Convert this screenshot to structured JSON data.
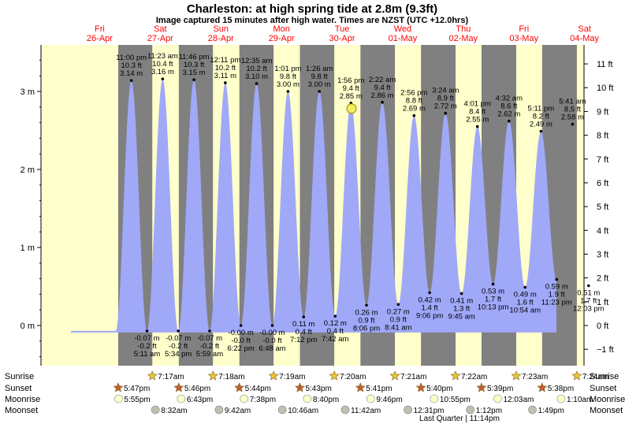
{
  "header": {
    "title": "Charleston: at high  spring tide at 2.8m (9.3ft)",
    "subtitle": "Image captured 15 minutes after high water. Times are NZST (UTC +12.0hrs)"
  },
  "colors": {
    "day": "#ffffcc",
    "night": "#808080",
    "water": "#a0a8f8",
    "day_label": "#ff0000",
    "sun_marker": "#f0f060",
    "sunrise_star": "#e8c830",
    "sunset_star": "#c06030",
    "moonrise": "#ffffc8",
    "moonset": "#c0c0b0"
  },
  "chart_data": {
    "type": "area",
    "days": [
      {
        "name": "Fri",
        "date": "26-Apr"
      },
      {
        "name": "Sat",
        "date": "27-Apr"
      },
      {
        "name": "Sun",
        "date": "28-Apr"
      },
      {
        "name": "Mon",
        "date": "29-Apr"
      },
      {
        "name": "Tue",
        "date": "30-Apr"
      },
      {
        "name": "Wed",
        "date": "01-May"
      },
      {
        "name": "Thu",
        "date": "02-May"
      },
      {
        "name": "Fri",
        "date": "03-May"
      },
      {
        "name": "Sat",
        "date": "04-May"
      }
    ],
    "y_left_ticks": [
      "0 m",
      "1 m",
      "2 m",
      "3 m"
    ],
    "y_right_ticks": [
      "−1 ft",
      "0 ft",
      "1 ft",
      "2 ft",
      "3 ft",
      "4 ft",
      "5 ft",
      "6 ft",
      "7 ft",
      "8 ft",
      "9 ft",
      "10 ft",
      "11 ft"
    ],
    "ylim_m": [
      -0.5,
      3.6
    ],
    "tides": [
      {
        "type": "high",
        "time": "11:00 pm",
        "m": 3.14,
        "ft": "10.3 ft",
        "m_label": "3.14 m"
      },
      {
        "type": "low",
        "time": "5:11 am",
        "m": -0.07,
        "ft": "-0.2 ft",
        "m_label": "-0.07 m"
      },
      {
        "type": "high",
        "time": "11:23 am",
        "m": 3.16,
        "ft": "10.4 ft",
        "m_label": "3.16 m"
      },
      {
        "type": "low",
        "time": "5:34 pm",
        "m": -0.07,
        "ft": "-0.2 ft",
        "m_label": "-0.07 m"
      },
      {
        "type": "high",
        "time": "11:46 pm",
        "m": 3.15,
        "ft": "10.3 ft",
        "m_label": "3.15 m"
      },
      {
        "type": "low",
        "time": "5:59 am",
        "m": -0.07,
        "ft": "-0.2 ft",
        "m_label": "-0.07 m"
      },
      {
        "type": "high",
        "time": "12:11 pm",
        "m": 3.11,
        "ft": "10.2 ft",
        "m_label": "3.11 m"
      },
      {
        "type": "low",
        "time": "6:22 pm",
        "m": 0.0,
        "ft": "-0.0 ft",
        "m_label": "-0.00 m"
      },
      {
        "type": "high",
        "time": "12:35 am",
        "m": 3.1,
        "ft": "10.2 ft",
        "m_label": "3.10 m"
      },
      {
        "type": "low",
        "time": "6:48 am",
        "m": 0.0,
        "ft": "-0.0 ft",
        "m_label": "-0.00 m"
      },
      {
        "type": "high",
        "time": "1:01 pm",
        "m": 3.0,
        "ft": "9.8 ft",
        "m_label": "3.00 m"
      },
      {
        "type": "low",
        "time": "7:12 pm",
        "m": 0.11,
        "ft": "0.4 ft",
        "m_label": "0.11 m"
      },
      {
        "type": "high",
        "time": "1:26 am",
        "m": 3.0,
        "ft": "9.8 ft",
        "m_label": "3.00 m"
      },
      {
        "type": "low",
        "time": "7:42 am",
        "m": 0.12,
        "ft": "0.4 ft",
        "m_label": "0.12 m"
      },
      {
        "type": "high",
        "time": "1:56 pm",
        "m": 2.85,
        "ft": "9.4 ft",
        "m_label": "2.85 m"
      },
      {
        "type": "low",
        "time": "8:06 pm",
        "m": 0.26,
        "ft": "0.9 ft",
        "m_label": "0.26 m"
      },
      {
        "type": "high",
        "time": "2:22 am",
        "m": 2.86,
        "ft": "9.4 ft",
        "m_label": "2.86 m"
      },
      {
        "type": "low",
        "time": "8:41 am",
        "m": 0.27,
        "ft": "0.9 ft",
        "m_label": "0.27 m"
      },
      {
        "type": "high",
        "time": "2:56 pm",
        "m": 2.69,
        "ft": "8.8 ft",
        "m_label": "2.69 m"
      },
      {
        "type": "low",
        "time": "9:06 pm",
        "m": 0.42,
        "ft": "1.4 ft",
        "m_label": "0.42 m"
      },
      {
        "type": "high",
        "time": "3:24 am",
        "m": 2.72,
        "ft": "8.9 ft",
        "m_label": "2.72 m"
      },
      {
        "type": "low",
        "time": "9:45 am",
        "m": 0.41,
        "ft": "1.3 ft",
        "m_label": "0.41 m"
      },
      {
        "type": "high",
        "time": "4:01 pm",
        "m": 2.55,
        "ft": "8.4 ft",
        "m_label": "2.55 m"
      },
      {
        "type": "low",
        "time": "10:13 pm",
        "m": 0.53,
        "ft": "1.7 ft",
        "m_label": "0.53 m"
      },
      {
        "type": "high",
        "time": "4:32 am",
        "m": 2.62,
        "ft": "8.6 ft",
        "m_label": "2.62 m"
      },
      {
        "type": "low",
        "time": "10:54 am",
        "m": 0.49,
        "ft": "1.6 ft",
        "m_label": "0.49 m"
      },
      {
        "type": "high",
        "time": "5:11 pm",
        "m": 2.49,
        "ft": "8.2 ft",
        "m_label": "2.49 m"
      },
      {
        "type": "low",
        "time": "11:23 pm",
        "m": 0.59,
        "ft": "1.9 ft",
        "m_label": "0.59 m"
      },
      {
        "type": "high",
        "time": "5:41 am",
        "m": 2.58,
        "ft": "8.5 ft",
        "m_label": "2.58 m"
      },
      {
        "type": "low",
        "time": "12:03 pm",
        "m": 0.51,
        "ft": "1.7 ft",
        "m_label": "0.51 m"
      }
    ]
  },
  "rows": {
    "sunrise_label": "Sunrise",
    "sunset_label": "Sunset",
    "moonrise_label": "Moonrise",
    "moonset_label": "Moonset",
    "sunrise": [
      "7:17am",
      "7:18am",
      "7:19am",
      "7:20am",
      "7:21am",
      "7:22am",
      "7:23am",
      "7:24am"
    ],
    "sunset": [
      "5:47pm",
      "5:46pm",
      "5:44pm",
      "5:43pm",
      "5:41pm",
      "5:40pm",
      "5:39pm",
      "5:38pm"
    ],
    "moonrise": [
      "5:55pm",
      "6:43pm",
      "7:38pm",
      "8:40pm",
      "9:46pm",
      "10:55pm",
      "12:03am",
      "1:10am"
    ],
    "moonset": [
      "8:32am",
      "9:42am",
      "10:46am",
      "11:42am",
      "12:31pm",
      "1:12pm",
      "1:49pm"
    ],
    "moon_phase": "Last Quarter | 11:14pm"
  }
}
